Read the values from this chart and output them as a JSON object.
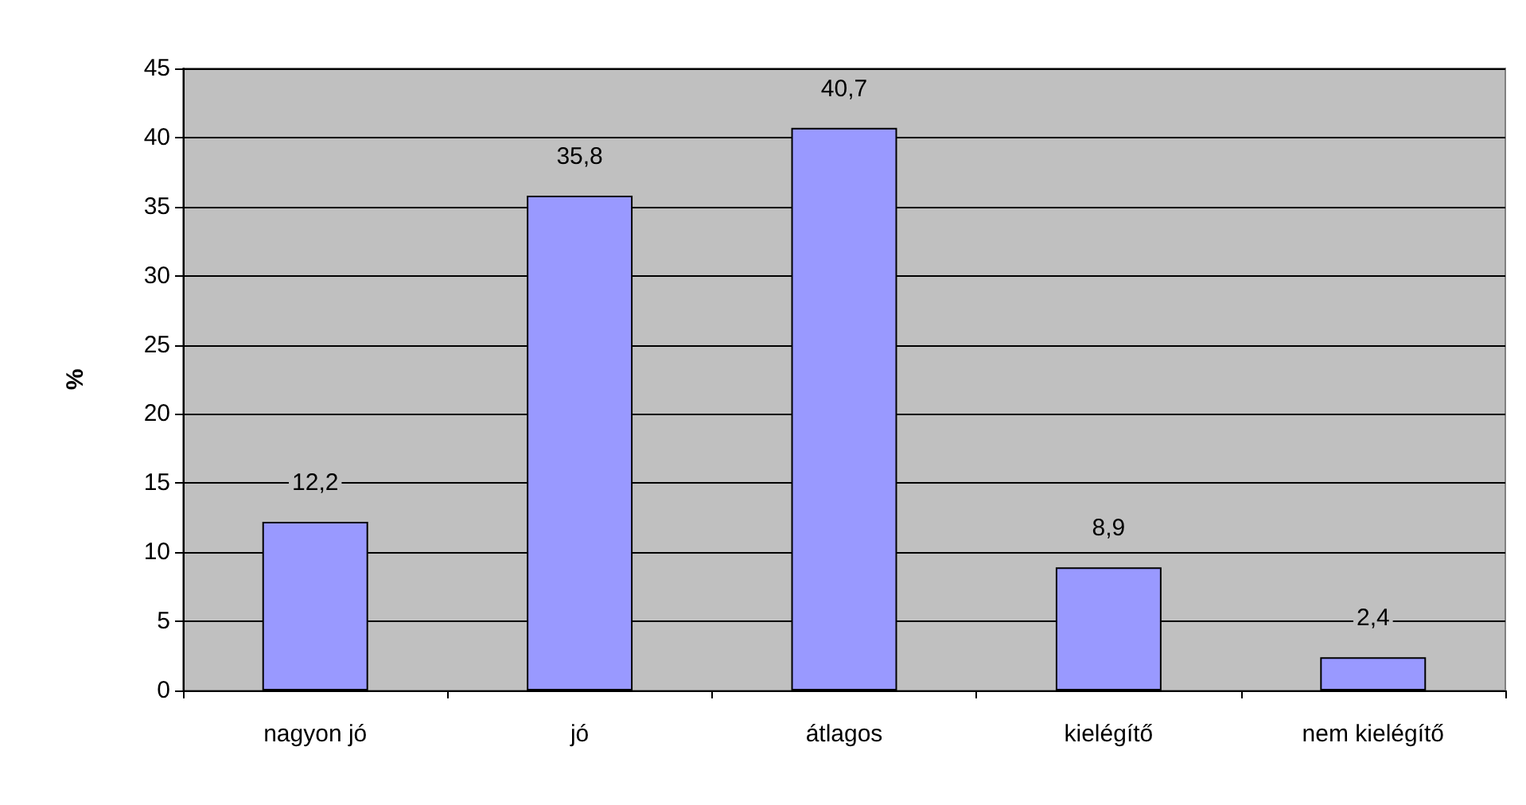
{
  "chart_data": {
    "type": "bar",
    "ylabel": "%",
    "categories": [
      "nagyon jó",
      "jó",
      "átlagos",
      "kielégítő",
      "nem kielégítő"
    ],
    "values": [
      12.2,
      35.8,
      40.7,
      8.9,
      2.4
    ],
    "value_labels": [
      "12,2",
      "35,8",
      "40,7",
      "8,9",
      "2,4"
    ],
    "color": "#9999ff",
    "ylim": [
      0,
      45
    ],
    "yticks": [
      0,
      5,
      10,
      15,
      20,
      25,
      30,
      35,
      40,
      45
    ],
    "grid": "y"
  }
}
